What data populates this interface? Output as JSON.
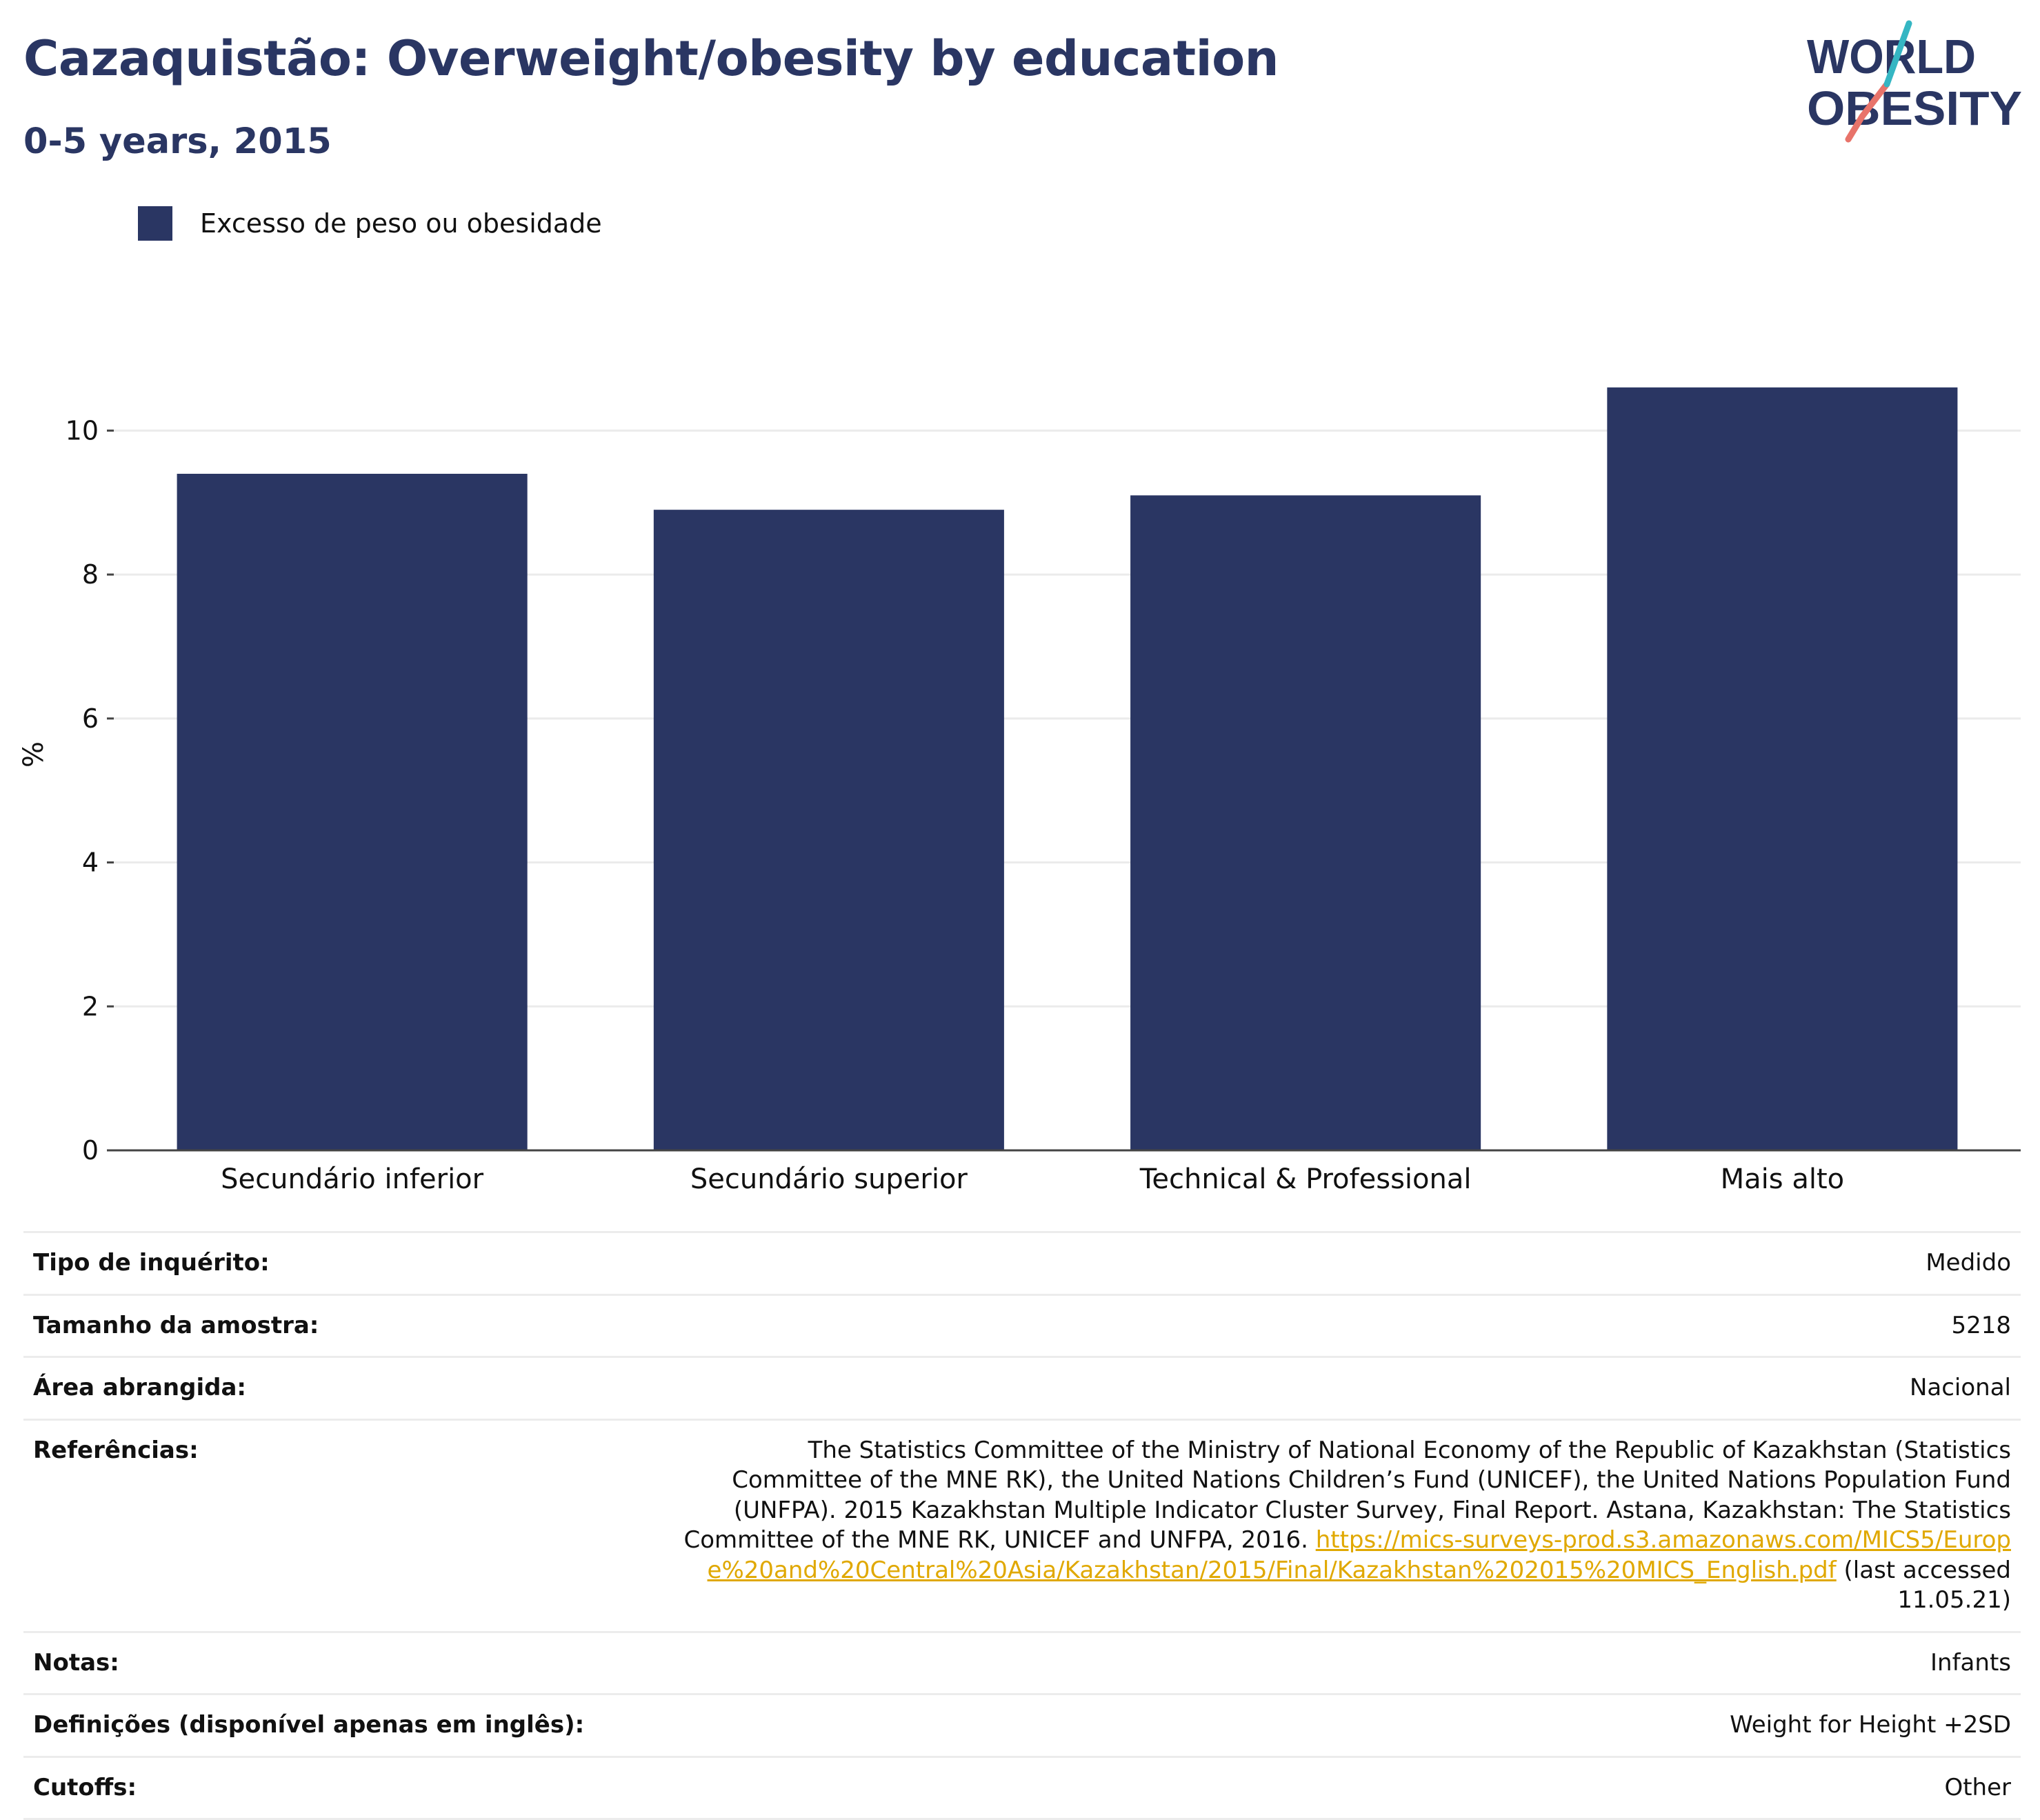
{
  "header": {
    "title": "Cazaquistão: Overweight/obesity by education",
    "subtitle": "0-5 years, 2015"
  },
  "logo": {
    "line1": "WORLD",
    "line2": "OBESITY"
  },
  "legend": {
    "label": "Excesso de peso ou obesidade",
    "color": "#2a3663"
  },
  "chart_data": {
    "type": "bar",
    "title": "Cazaquistão: Overweight/obesity by education",
    "subtitle": "0-5 years, 2015",
    "xlabel": "",
    "ylabel": "%",
    "categories": [
      "Secundário inferior",
      "Secundário superior",
      "Technical & Professional",
      "Mais alto"
    ],
    "series": [
      {
        "name": "Excesso de peso ou obesidade",
        "values": [
          9.4,
          8.9,
          9.1,
          10.6
        ],
        "color": "#2a3663"
      }
    ],
    "ylim": [
      0,
      11
    ],
    "yticks": [
      0,
      2,
      4,
      6,
      8,
      10
    ],
    "grid": true,
    "legend_position": "top-left"
  },
  "meta": {
    "rows": [
      {
        "key": "Tipo de inquérito:",
        "value": "Medido"
      },
      {
        "key": "Tamanho da amostra:",
        "value": "5218"
      },
      {
        "key": "Área abrangida:",
        "value": "Nacional"
      },
      {
        "key": "Referências:",
        "value": "The Statistics Committee of the Ministry of National Economy of the Republic of Kazakhstan (Statistics Committee of the MNE RK), the United Nations Children’s Fund (UNICEF), the United Nations Population Fund (UNFPA). 2015 Kazakhstan Multiple Indicator Cluster Survey, Final Report. Astana, Kazakhstan: The Statistics Committee of the MNE RK, UNICEF and UNFPA, 2016.",
        "link": "https://mics-surveys-prod.s3.amazonaws.com/MICS5/Europe%20and%20Central%20Asia/Kazakhstan/2015/Final/Kazakhstan%202015%20MICS_English.pdf",
        "suffix": "(last accessed 11.05.21)"
      },
      {
        "key": "Notas:",
        "value": "Infants"
      },
      {
        "key": "Definições (disponível apenas em inglês):",
        "value": "Weight for Height +2SD"
      },
      {
        "key": "Cutoffs:",
        "value": "Other"
      }
    ]
  }
}
